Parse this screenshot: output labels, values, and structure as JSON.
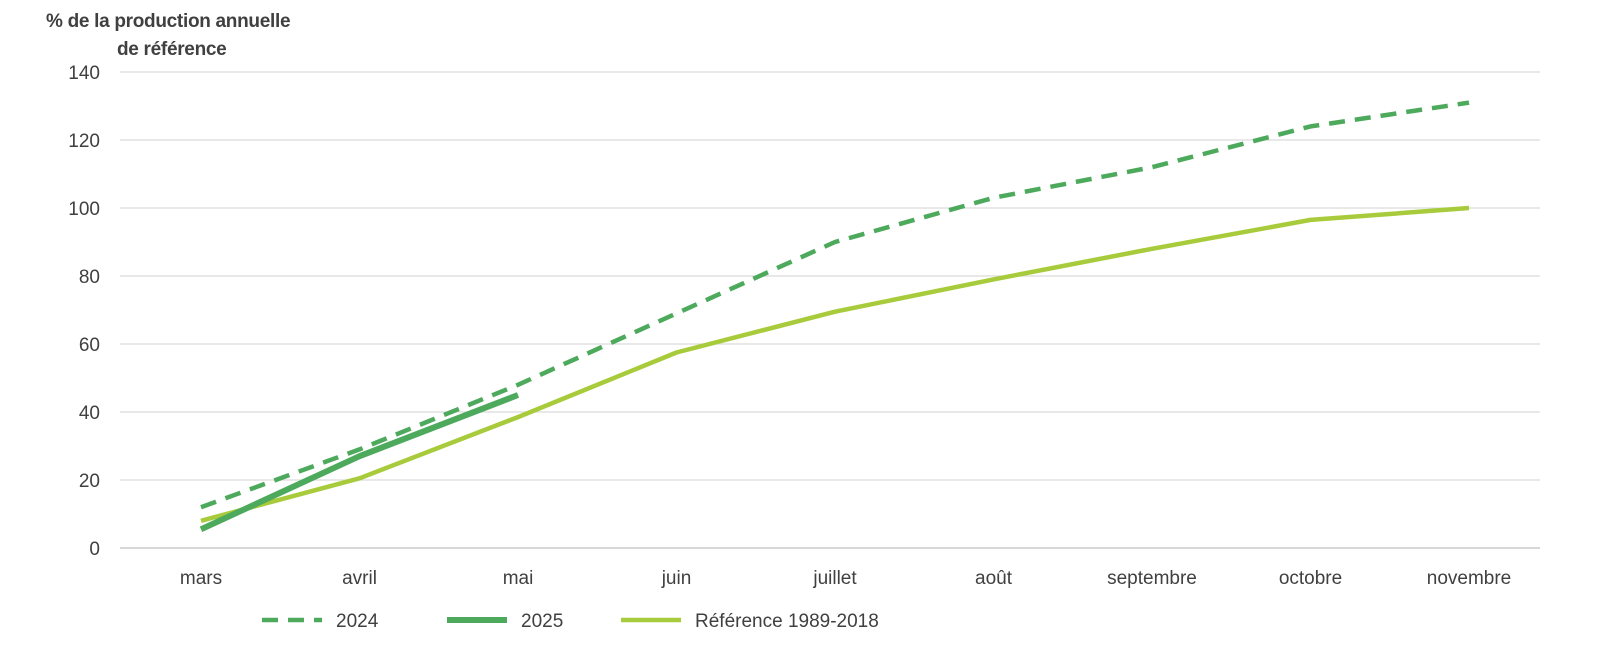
{
  "chart_data": {
    "type": "line",
    "ylabel_line1": "% de  la production  annuelle",
    "ylabel_line2": "de référence",
    "ylim": [
      0,
      140
    ],
    "yticks": [
      0,
      20,
      40,
      60,
      80,
      100,
      120,
      140
    ],
    "grid": true,
    "legend_position": "bottom",
    "categories": [
      "mars",
      "avril",
      "mai",
      "juin",
      "juillet",
      "août",
      "septembre",
      "octobre",
      "novembre"
    ],
    "series": [
      {
        "name": "2024",
        "color": "#4daa5c",
        "style": "dashed",
        "values": [
          12,
          29,
          48,
          69,
          90,
          103,
          112,
          124,
          131
        ]
      },
      {
        "name": "2025",
        "color": "#4daa5c",
        "style": "solid-thick",
        "values": [
          5.5,
          27,
          45,
          null,
          null,
          null,
          null,
          null,
          null
        ]
      },
      {
        "name": "Référence 1989-2018",
        "color": "#a8cb3c",
        "style": "solid",
        "values": [
          8,
          20.5,
          38.5,
          57.5,
          69.5,
          79,
          88,
          96.5,
          100
        ]
      }
    ]
  }
}
